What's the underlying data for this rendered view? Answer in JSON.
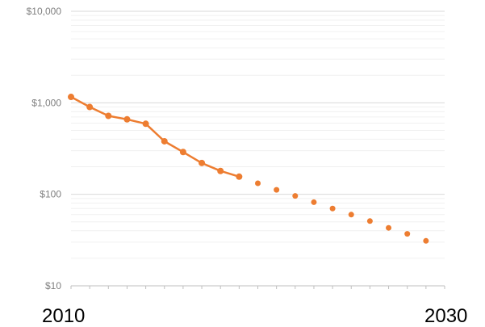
{
  "chart_data": {
    "type": "line",
    "y_scale": "log",
    "ylim": [
      10,
      10000
    ],
    "xlim": [
      2010,
      2030
    ],
    "y_tick_labels": [
      "$10",
      "$100",
      "$1,000",
      "$10,000"
    ],
    "y_tick_values": [
      10,
      100,
      1000,
      10000
    ],
    "x_edge_labels": [
      "2010",
      "2030"
    ],
    "grid": "horizontal major and minor gridlines",
    "legend": "none",
    "series": [
      {
        "style": "solid line with markers (historical)",
        "color": "#ED7D31",
        "x": [
          2010,
          2011,
          2012,
          2013,
          2014,
          2015,
          2016,
          2017,
          2018,
          2019
        ],
        "values": [
          1160,
          900,
          720,
          660,
          590,
          380,
          290,
          220,
          180,
          156
        ]
      },
      {
        "style": "markers only (projected)",
        "color": "#ED7D31",
        "x": [
          2020,
          2021,
          2022,
          2023,
          2024,
          2025,
          2026,
          2027,
          2028,
          2029
        ],
        "values": [
          132,
          112,
          96,
          82,
          70,
          60,
          51,
          43,
          37,
          31
        ]
      }
    ]
  }
}
